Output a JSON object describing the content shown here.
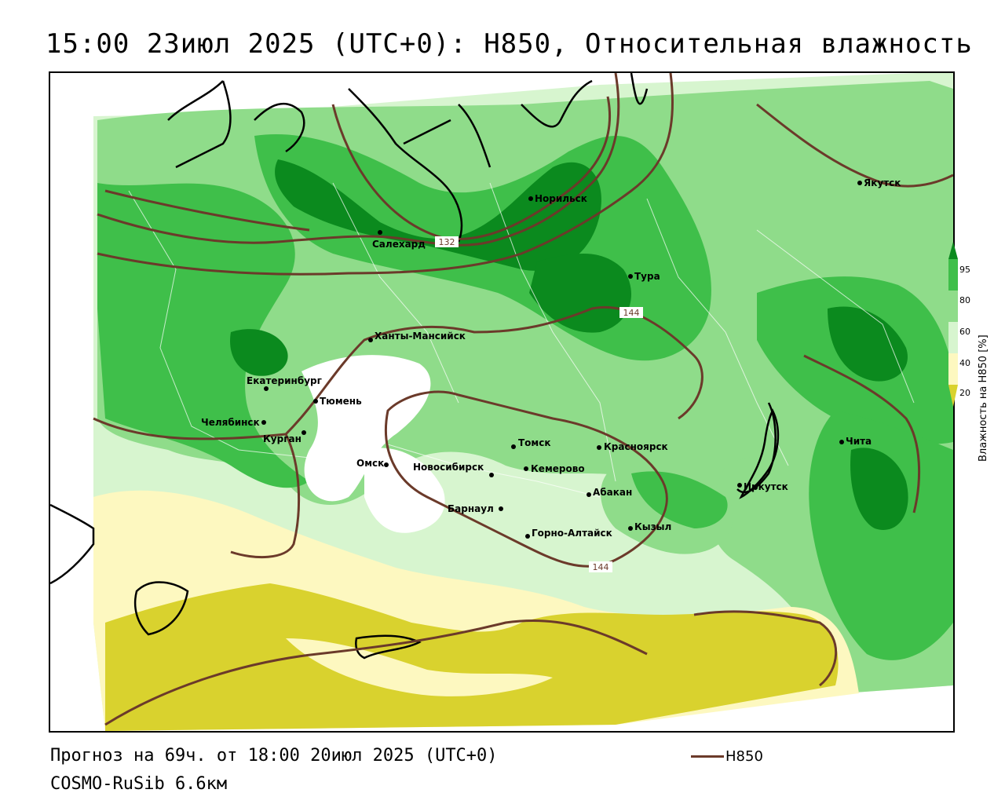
{
  "title": "15:00 23июл 2025 (UTC+0): H850, Относительная влажность",
  "footer": {
    "forecast": "Прогноз на 69ч. от 18:00 20июл 2025 (UTC+0)",
    "model": "COSMO-RuSib 6.6км",
    "legend_label": "H850"
  },
  "colorbar": {
    "label": "Влажность на H850 [%]",
    "ticks": [
      "95",
      "80",
      "60",
      "40",
      "20"
    ],
    "colors": {
      "c95": "#0b8a1e",
      "c80": "#3fbf4a",
      "c60": "#8fdc8a",
      "c40": "#d7f5cf",
      "c20": "#fdf8c0",
      "c0": "#d9d22e"
    }
  },
  "contour_color": "#6b3a2a",
  "contour_labels": [
    "132",
    "144",
    "144"
  ],
  "cities": [
    {
      "name": "Салехард"
    },
    {
      "name": "Норильск"
    },
    {
      "name": "Якутск"
    },
    {
      "name": "Тура"
    },
    {
      "name": "Ханты-Мансийск"
    },
    {
      "name": "Екатеринбург"
    },
    {
      "name": "Тюмень"
    },
    {
      "name": "Челябинск"
    },
    {
      "name": "Курган"
    },
    {
      "name": "Омск"
    },
    {
      "name": "Новосибирск"
    },
    {
      "name": "Томск"
    },
    {
      "name": "Кемерово"
    },
    {
      "name": "Красноярск"
    },
    {
      "name": "Барнаул"
    },
    {
      "name": "Абакан"
    },
    {
      "name": "Горно-Алтайск"
    },
    {
      "name": "Кызыл"
    },
    {
      "name": "Иркутск"
    },
    {
      "name": "Чита"
    }
  ]
}
